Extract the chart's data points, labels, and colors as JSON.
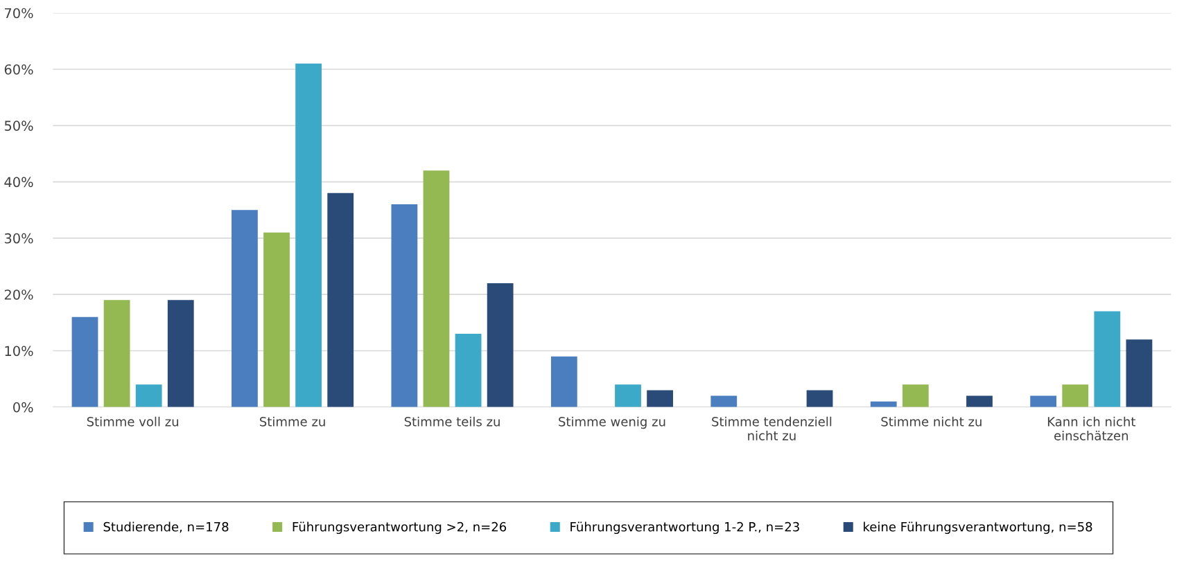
{
  "chart_data": {
    "type": "bar",
    "categories": [
      "Stimme voll zu",
      "Stimme zu",
      "Stimme teils zu",
      "Stimme wenig zu",
      "Stimme tendenziell\nnicht zu",
      "Stimme nicht zu",
      "Kann ich nicht\neinschätzen"
    ],
    "series": [
      {
        "name": "Studierende, n=178",
        "color": "#4a7ebf",
        "values": [
          16,
          35,
          36,
          9,
          2,
          1,
          2
        ]
      },
      {
        "name": "Führungsverantwortung >2, n=26",
        "color": "#94b852",
        "values": [
          19,
          31,
          42,
          0,
          0,
          4,
          4
        ]
      },
      {
        "name": "Führungsverantwortung 1-2 P., n=23",
        "color": "#3ca9c8",
        "values": [
          4,
          61,
          13,
          4,
          0,
          0,
          17
        ]
      },
      {
        "name": "keine Führungsverantwortung, n=58",
        "color": "#2a4a78",
        "values": [
          19,
          38,
          22,
          3,
          3,
          2,
          12
        ]
      }
    ],
    "ylim": [
      0,
      70
    ],
    "yticks": [
      {
        "value": 0,
        "label": "0%"
      },
      {
        "value": 10,
        "label": "10%"
      },
      {
        "value": 20,
        "label": "20%"
      },
      {
        "value": 30,
        "label": "30%"
      },
      {
        "value": 40,
        "label": "40%"
      },
      {
        "value": 50,
        "label": "50%"
      },
      {
        "value": 60,
        "label": "60%"
      },
      {
        "value": 70,
        "label": "70%"
      }
    ],
    "grid": "y",
    "legend": "bottom"
  }
}
